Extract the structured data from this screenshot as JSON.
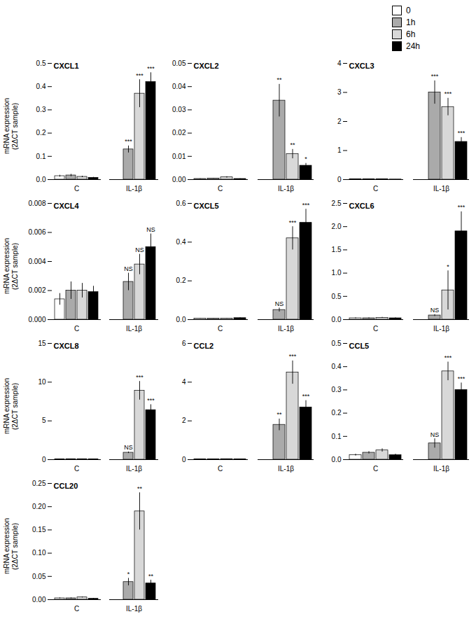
{
  "chart_data": [
    {
      "type": "bar",
      "title": "CXCL1",
      "categories": [
        "C",
        "IL-1β"
      ],
      "ylabel": "mRNA expression\n(2ΔCT sample)",
      "legend": "upper right",
      "ylim": [
        0,
        0.5
      ],
      "yticks": [
        {
          "value": 0,
          "label": "0.0"
        },
        0.1,
        0.2,
        0.3,
        0.4,
        0.5
      ],
      "series": [
        {
          "name": "0",
          "color": "white",
          "values": [
            0.015,
            0.0
          ],
          "errors": [
            0.004,
            0.0
          ],
          "annotations": [
            null,
            null
          ]
        },
        {
          "name": "1h",
          "color": "#aaaaaa",
          "values": [
            0.018,
            0.13
          ],
          "errors": [
            0.005,
            0.015
          ],
          "annotations": [
            null,
            "***"
          ]
        },
        {
          "name": "6h",
          "color": "#d8d8d8",
          "values": [
            0.012,
            0.37
          ],
          "errors": [
            0.003,
            0.06
          ],
          "annotations": [
            null,
            "***"
          ]
        },
        {
          "name": "24h",
          "color": "black",
          "values": [
            0.008,
            0.42
          ],
          "errors": [
            0.002,
            0.04
          ],
          "annotations": [
            null,
            "***"
          ]
        }
      ]
    },
    {
      "type": "bar",
      "title": "CXCL2",
      "categories": [
        "C",
        "IL-1β"
      ],
      "ylim": [
        0,
        0.05
      ],
      "yticks": [
        {
          "value": 0,
          "label": "0.00"
        },
        0.01,
        0.02,
        0.03,
        0.04,
        0.05
      ],
      "series": [
        {
          "name": "0",
          "color": "white",
          "values": [
            0.0003,
            0.0
          ],
          "errors": [
            0.0001,
            0.0
          ],
          "annotations": [
            null,
            null
          ]
        },
        {
          "name": "1h",
          "color": "#aaaaaa",
          "values": [
            0.0005,
            0.034
          ],
          "errors": [
            0.0001,
            0.007
          ],
          "annotations": [
            null,
            "**"
          ]
        },
        {
          "name": "6h",
          "color": "#d8d8d8",
          "values": [
            0.001,
            0.011
          ],
          "errors": [
            0.0003,
            0.002
          ],
          "annotations": [
            null,
            "**"
          ]
        },
        {
          "name": "24h",
          "color": "black",
          "values": [
            0.0003,
            0.006
          ],
          "errors": [
            0.0001,
            0.001
          ],
          "annotations": [
            null,
            "*"
          ]
        }
      ]
    },
    {
      "type": "bar",
      "title": "CXCL3",
      "categories": [
        "C",
        "IL-1β"
      ],
      "ylim": [
        0,
        4
      ],
      "yticks": [
        0,
        1,
        2,
        3,
        4
      ],
      "series": [
        {
          "name": "0",
          "color": "white",
          "values": [
            0.01,
            0.0
          ],
          "errors": [
            0.003,
            0.0
          ],
          "annotations": [
            null,
            null
          ]
        },
        {
          "name": "1h",
          "color": "#aaaaaa",
          "values": [
            0.01,
            3.0
          ],
          "errors": [
            0.003,
            0.4
          ],
          "annotations": [
            null,
            "***"
          ]
        },
        {
          "name": "6h",
          "color": "#d8d8d8",
          "values": [
            0.01,
            2.5
          ],
          "errors": [
            0.003,
            0.3
          ],
          "annotations": [
            null,
            "***"
          ]
        },
        {
          "name": "24h",
          "color": "black",
          "values": [
            0.005,
            1.3
          ],
          "errors": [
            0.001,
            0.15
          ],
          "annotations": [
            null,
            "***"
          ]
        }
      ]
    },
    {
      "type": "bar",
      "title": "CXCL4",
      "categories": [
        "C",
        "IL-1β"
      ],
      "ylabel": "mRNA expression\n(2ΔCT sample)",
      "ylim": [
        0,
        0.008
      ],
      "yticks": [
        {
          "value": 0,
          "label": "0.000"
        },
        0.002,
        0.004,
        0.006,
        0.008
      ],
      "series": [
        {
          "name": "0",
          "color": "white",
          "values": [
            0.0014,
            0.0
          ],
          "errors": [
            0.0004,
            0.0
          ],
          "annotations": [
            null,
            null
          ]
        },
        {
          "name": "1h",
          "color": "#aaaaaa",
          "values": [
            0.002,
            0.0026
          ],
          "errors": [
            0.0006,
            0.0006
          ],
          "annotations": [
            null,
            "NS"
          ]
        },
        {
          "name": "6h",
          "color": "#d8d8d8",
          "values": [
            0.002,
            0.0038
          ],
          "errors": [
            0.0005,
            0.0007
          ],
          "annotations": [
            null,
            "NS"
          ]
        },
        {
          "name": "24h",
          "color": "black",
          "values": [
            0.0019,
            0.005
          ],
          "errors": [
            0.0004,
            0.0009
          ],
          "annotations": [
            null,
            "NS"
          ]
        }
      ]
    },
    {
      "type": "bar",
      "title": "CXCL5",
      "categories": [
        "C",
        "IL-1β"
      ],
      "ylim": [
        0,
        0.6
      ],
      "yticks": [
        {
          "value": 0,
          "label": "0.0"
        },
        0.2,
        0.4,
        0.6
      ],
      "series": [
        {
          "name": "0",
          "color": "white",
          "values": [
            0.005,
            0.0
          ],
          "errors": [
            0.001,
            0.0
          ],
          "annotations": [
            null,
            null
          ]
        },
        {
          "name": "1h",
          "color": "#aaaaaa",
          "values": [
            0.005,
            0.05
          ],
          "errors": [
            0.001,
            0.01
          ],
          "annotations": [
            null,
            "NS"
          ]
        },
        {
          "name": "6h",
          "color": "#d8d8d8",
          "values": [
            0.006,
            0.42
          ],
          "errors": [
            0.001,
            0.06
          ],
          "annotations": [
            null,
            "***"
          ]
        },
        {
          "name": "24h",
          "color": "black",
          "values": [
            0.008,
            0.5
          ],
          "errors": [
            0.002,
            0.07
          ],
          "annotations": [
            null,
            "***"
          ]
        }
      ]
    },
    {
      "type": "bar",
      "title": "CXCL6",
      "categories": [
        "C",
        "IL-1β"
      ],
      "ylim": [
        0,
        2.5
      ],
      "yticks": [
        {
          "value": 0,
          "label": "0.0"
        },
        0.5,
        {
          "value": 1.0,
          "label": "1.0"
        },
        1.5,
        {
          "value": 2.0,
          "label": "2.0"
        },
        2.5
      ],
      "series": [
        {
          "name": "0",
          "color": "white",
          "values": [
            0.03,
            0.0
          ],
          "errors": [
            0.01,
            0.0
          ],
          "annotations": [
            null,
            null
          ]
        },
        {
          "name": "1h",
          "color": "#aaaaaa",
          "values": [
            0.03,
            0.09
          ],
          "errors": [
            0.01,
            0.02
          ],
          "annotations": [
            null,
            "NS"
          ]
        },
        {
          "name": "6h",
          "color": "#d8d8d8",
          "values": [
            0.04,
            0.63
          ],
          "errors": [
            0.01,
            0.42
          ],
          "annotations": [
            null,
            "*"
          ]
        },
        {
          "name": "24h",
          "color": "black",
          "values": [
            0.03,
            1.9
          ],
          "errors": [
            0.01,
            0.42
          ],
          "annotations": [
            null,
            "***"
          ]
        }
      ]
    },
    {
      "type": "bar",
      "title": "CXCL8",
      "categories": [
        "C",
        "IL-1β"
      ],
      "ylabel": "mRNA expression\n(2ΔCT sample)",
      "ylim": [
        0,
        15
      ],
      "yticks": [
        0,
        5,
        10,
        15
      ],
      "series": [
        {
          "name": "0",
          "color": "white",
          "values": [
            0.05,
            0.0
          ],
          "errors": [
            0.01,
            0.0
          ],
          "annotations": [
            null,
            null
          ]
        },
        {
          "name": "1h",
          "color": "#aaaaaa",
          "values": [
            0.07,
            0.9
          ],
          "errors": [
            0.01,
            0.1
          ],
          "annotations": [
            null,
            "NS"
          ]
        },
        {
          "name": "6h",
          "color": "#d8d8d8",
          "values": [
            0.07,
            8.9
          ],
          "errors": [
            0.01,
            1.2
          ],
          "annotations": [
            null,
            "***"
          ]
        },
        {
          "name": "24h",
          "color": "black",
          "values": [
            0.05,
            6.4
          ],
          "errors": [
            0.01,
            0.7
          ],
          "annotations": [
            null,
            "***"
          ]
        }
      ]
    },
    {
      "type": "bar",
      "title": "CCL2",
      "categories": [
        "C",
        "IL-1β"
      ],
      "ylim": [
        0,
        6
      ],
      "yticks": [
        0,
        2,
        4,
        6
      ],
      "series": [
        {
          "name": "0",
          "color": "white",
          "values": [
            0.02,
            0.0
          ],
          "errors": [
            0.005,
            0.0
          ],
          "annotations": [
            null,
            null
          ]
        },
        {
          "name": "1h",
          "color": "#aaaaaa",
          "values": [
            0.02,
            1.8
          ],
          "errors": [
            0.005,
            0.3
          ],
          "annotations": [
            null,
            "**"
          ]
        },
        {
          "name": "6h",
          "color": "#d8d8d8",
          "values": [
            0.03,
            4.5
          ],
          "errors": [
            0.006,
            0.6
          ],
          "annotations": [
            null,
            "***"
          ]
        },
        {
          "name": "24h",
          "color": "black",
          "values": [
            0.02,
            2.7
          ],
          "errors": [
            0.005,
            0.35
          ],
          "annotations": [
            null,
            "***"
          ]
        }
      ]
    },
    {
      "type": "bar",
      "title": "CCL5",
      "categories": [
        "C",
        "IL-1β"
      ],
      "ylim": [
        0,
        0.5
      ],
      "yticks": [
        {
          "value": 0,
          "label": "0.0"
        },
        0.1,
        0.2,
        0.3,
        0.4,
        0.5
      ],
      "series": [
        {
          "name": "0",
          "color": "white",
          "values": [
            0.02,
            0.0
          ],
          "errors": [
            0.004,
            0.0
          ],
          "annotations": [
            null,
            null
          ]
        },
        {
          "name": "1h",
          "color": "#aaaaaa",
          "values": [
            0.03,
            0.07
          ],
          "errors": [
            0.005,
            0.02
          ],
          "annotations": [
            null,
            "NS"
          ]
        },
        {
          "name": "6h",
          "color": "#d8d8d8",
          "values": [
            0.04,
            0.38
          ],
          "errors": [
            0.007,
            0.04
          ],
          "annotations": [
            null,
            "***"
          ]
        },
        {
          "name": "24h",
          "color": "black",
          "values": [
            0.02,
            0.3
          ],
          "errors": [
            0.004,
            0.03
          ],
          "annotations": [
            null,
            "***"
          ]
        }
      ]
    },
    {
      "type": "bar",
      "title": "CCL20",
      "categories": [
        "C",
        "IL-1β"
      ],
      "ylabel": "mRNA expression\n(2ΔCT sample)",
      "ylim": [
        0,
        0.25
      ],
      "yticks": [
        {
          "value": 0,
          "label": "0.00"
        },
        0.05,
        {
          "value": 0.1,
          "label": "0.10"
        },
        0.15,
        {
          "value": 0.2,
          "label": "0.20"
        },
        0.25
      ],
      "series": [
        {
          "name": "0",
          "color": "white",
          "values": [
            0.003,
            0.0
          ],
          "errors": [
            0.001,
            0.0
          ],
          "annotations": [
            null,
            null
          ]
        },
        {
          "name": "1h",
          "color": "#aaaaaa",
          "values": [
            0.003,
            0.038
          ],
          "errors": [
            0.001,
            0.008
          ],
          "annotations": [
            null,
            "*"
          ]
        },
        {
          "name": "6h",
          "color": "#d8d8d8",
          "values": [
            0.005,
            0.19
          ],
          "errors": [
            0.001,
            0.04
          ],
          "annotations": [
            null,
            "**"
          ]
        },
        {
          "name": "24h",
          "color": "black",
          "values": [
            0.002,
            0.035
          ],
          "errors": [
            0.001,
            0.007
          ],
          "annotations": [
            null,
            "**"
          ]
        }
      ]
    }
  ]
}
